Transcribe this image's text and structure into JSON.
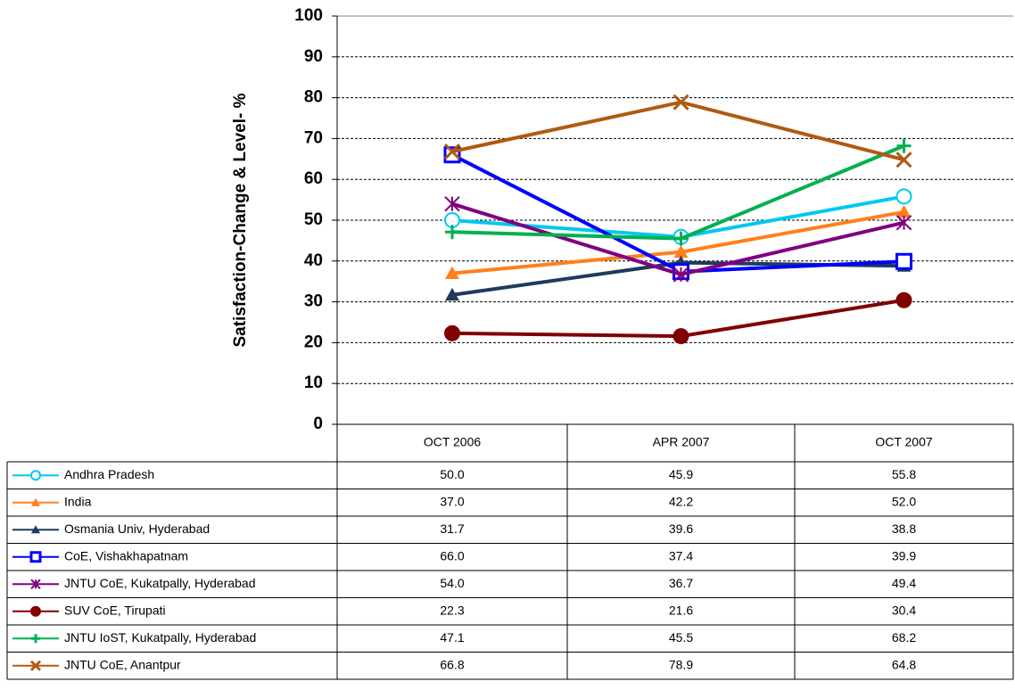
{
  "chart_data": {
    "type": "line",
    "y_label": "Satisfaction-Change  & Level- %",
    "categories": [
      "OCT 2006",
      "APR 2007",
      "OCT 2007"
    ],
    "ylim": [
      0,
      100
    ],
    "yticks": [
      0,
      10,
      20,
      30,
      40,
      50,
      60,
      70,
      80,
      90,
      100
    ],
    "grid": true,
    "series": [
      {
        "name": "Andhra Pradesh",
        "color": "#00c8f0",
        "marker": "circle-open",
        "values": [
          50.0,
          45.9,
          55.8
        ],
        "value_labels": [
          "50.0",
          "45.9",
          "55.8"
        ]
      },
      {
        "name": "India",
        "color": "#ff7f1e",
        "marker": "triangle",
        "values": [
          37.0,
          42.2,
          52.0
        ],
        "value_labels": [
          "37.0",
          "42.2",
          "52.0"
        ]
      },
      {
        "name": "Osmania Univ, Hyderabad",
        "color": "#1f3a5f",
        "marker": "triangle",
        "values": [
          31.7,
          39.6,
          38.8
        ],
        "value_labels": [
          "31.7",
          "39.6",
          "38.8"
        ]
      },
      {
        "name": "CoE, Vishakhapatnam",
        "color": "#0000ff",
        "marker": "square",
        "values": [
          66.0,
          37.4,
          39.9
        ],
        "value_labels": [
          "66.0",
          "37.4",
          "39.9"
        ]
      },
      {
        "name": "JNTU CoE, Kukatpally, Hyderabad",
        "color": "#800080",
        "marker": "asterisk",
        "values": [
          54.0,
          36.7,
          49.4
        ],
        "value_labels": [
          "54.0",
          "36.7",
          "49.4"
        ]
      },
      {
        "name": "SUV CoE, Tirupati",
        "color": "#800000",
        "marker": "circle",
        "values": [
          22.3,
          21.6,
          30.4
        ],
        "value_labels": [
          "22.3",
          "21.6",
          "30.4"
        ]
      },
      {
        "name": "JNTU IoST, Kukatpally,  Hyderabad",
        "color": "#00b050",
        "marker": "plus",
        "values": [
          47.1,
          45.5,
          68.2
        ],
        "value_labels": [
          "47.1",
          "45.5",
          "68.2"
        ]
      },
      {
        "name": "JNTU CoE, Anantpur",
        "color": "#b05a10",
        "marker": "x",
        "values": [
          66.8,
          78.9,
          64.8
        ],
        "value_labels": [
          "66.8",
          "78.9",
          "64.8"
        ]
      }
    ]
  }
}
